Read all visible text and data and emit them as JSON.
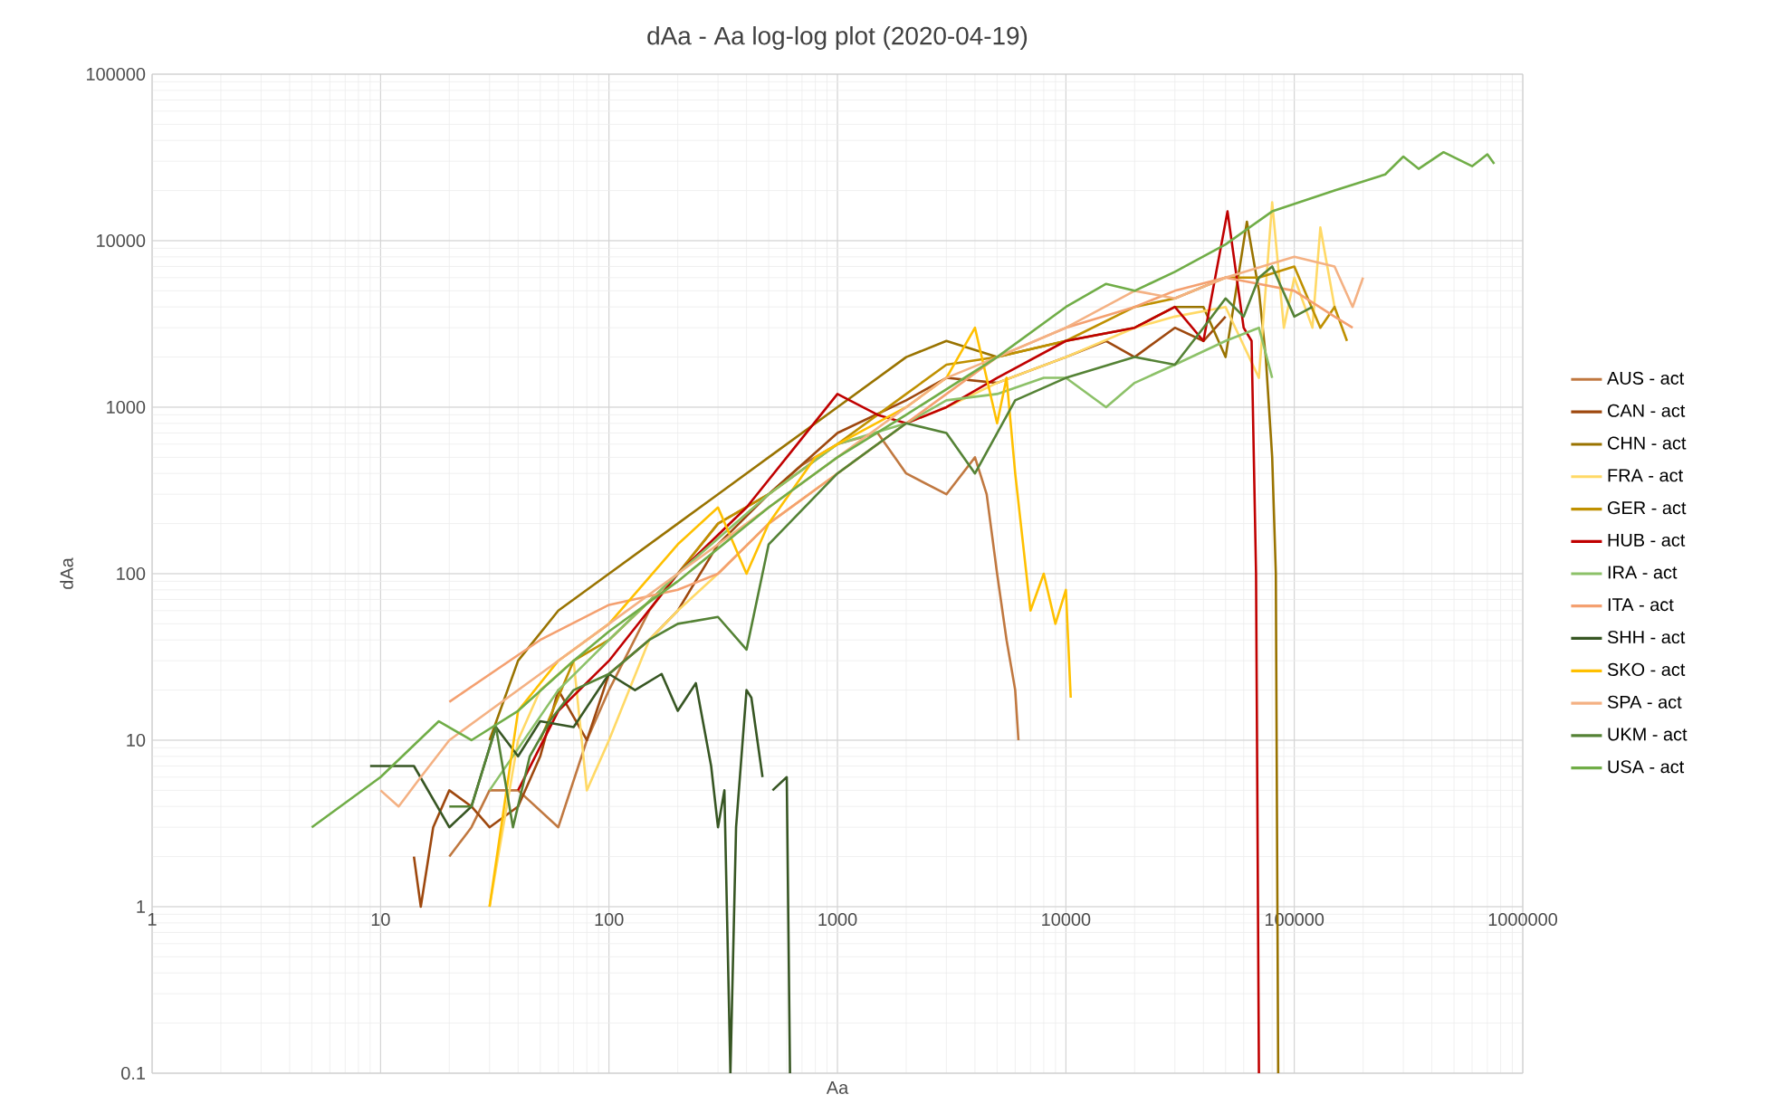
{
  "chart_data": {
    "type": "line",
    "title": "dAa - Aa log-log plot (2020-04-19)",
    "xlabel": "Aa",
    "ylabel": "dAa",
    "log": "xy",
    "grid": true,
    "legend": "right",
    "marker": "none",
    "line_style": "solid",
    "xlim": [
      1,
      1000000
    ],
    "ylim": [
      0.1,
      100000
    ],
    "xticks": [
      1,
      10,
      100,
      1000,
      10000,
      100000,
      1000000
    ],
    "yticks": [
      0.1,
      1,
      10,
      100,
      1000,
      10000,
      100000
    ],
    "series": [
      {
        "name": "AUS - act",
        "color": "#c07840",
        "x": [
          20,
          25,
          30,
          40,
          60,
          80,
          100,
          150,
          200,
          300,
          500,
          700,
          1000,
          1500,
          2000,
          3000,
          4000,
          4500,
          5000,
          5500,
          6000,
          6200
        ],
        "values": [
          2,
          3,
          5,
          5,
          3,
          10,
          20,
          60,
          100,
          200,
          300,
          450,
          600,
          700,
          400,
          300,
          500,
          300,
          100,
          40,
          20,
          10
        ]
      },
      {
        "name": "CAN - act",
        "color": "#9e480e",
        "x": [
          14,
          15,
          17,
          20,
          25,
          30,
          40,
          50,
          60,
          80,
          100,
          150,
          200,
          300,
          500,
          1000,
          2000,
          3000,
          5000,
          10000,
          15000,
          20000,
          30000,
          40000,
          50000
        ],
        "values": [
          2,
          1,
          3,
          5,
          4,
          3,
          4,
          8,
          20,
          10,
          25,
          40,
          60,
          150,
          300,
          700,
          1100,
          1500,
          1400,
          2000,
          2500,
          2000,
          3000,
          2500,
          3500
        ]
      },
      {
        "name": "CHN - act",
        "color": "#997300",
        "x": [
          30,
          40,
          60,
          100,
          200,
          300,
          500,
          1000,
          2000,
          3000,
          5000,
          10000,
          20000,
          30000,
          40000,
          50000,
          62000,
          70000,
          75000,
          80000,
          83000,
          85000
        ],
        "values": [
          10,
          30,
          60,
          100,
          200,
          300,
          500,
          1000,
          2000,
          2500,
          2000,
          2500,
          3000,
          4000,
          4000,
          2000,
          13000,
          5000,
          2000,
          500,
          100,
          0.1
        ]
      },
      {
        "name": "FRA - act",
        "color": "#ffd966",
        "x": [
          30,
          40,
          50,
          70,
          80,
          100,
          150,
          200,
          300,
          500,
          1000,
          2000,
          3000,
          5000,
          10000,
          20000,
          30000,
          50000,
          70000,
          80000,
          90000,
          100000,
          120000,
          130000,
          150000
        ],
        "values": [
          1,
          10,
          20,
          30,
          5,
          10,
          40,
          60,
          100,
          200,
          400,
          800,
          1000,
          1400,
          2000,
          3000,
          3500,
          4000,
          1500,
          17000,
          3000,
          6000,
          3000,
          12000,
          4000
        ]
      },
      {
        "name": "GER - act",
        "color": "#bf9000",
        "x": [
          50,
          70,
          100,
          200,
          300,
          500,
          1000,
          2000,
          3000,
          5000,
          10000,
          20000,
          30000,
          50000,
          70000,
          100000,
          130000,
          150000,
          170000
        ],
        "values": [
          10,
          30,
          40,
          100,
          200,
          300,
          600,
          1200,
          1800,
          2000,
          2500,
          4000,
          4500,
          6000,
          6000,
          7000,
          3000,
          4000,
          2500
        ]
      },
      {
        "name": "HUB - act",
        "color": "#c00000",
        "x": [
          40,
          60,
          100,
          200,
          400,
          600,
          1000,
          1500,
          2000,
          3000,
          5000,
          10000,
          20000,
          30000,
          40000,
          51000,
          60000,
          65000,
          68000,
          70000
        ],
        "values": [
          5,
          15,
          30,
          100,
          250,
          500,
          1200,
          900,
          800,
          1000,
          1500,
          2500,
          3000,
          4000,
          2500,
          15000,
          3000,
          2500,
          100,
          0.1
        ]
      },
      {
        "name": "IRA - act",
        "color": "#8cc168",
        "x": [
          30,
          60,
          100,
          200,
          500,
          1000,
          2000,
          3000,
          5000,
          8000,
          10000,
          15000,
          20000,
          30000,
          50000,
          70000,
          80000
        ],
        "values": [
          5,
          20,
          40,
          100,
          300,
          600,
          800,
          1100,
          1200,
          1500,
          1500,
          1000,
          1400,
          1800,
          2500,
          3000,
          1500
        ]
      },
      {
        "name": "ITA - act",
        "color": "#f4a070",
        "x": [
          20,
          50,
          100,
          200,
          300,
          500,
          1000,
          2000,
          3000,
          5000,
          10000,
          20000,
          30000,
          50000,
          70000,
          100000,
          150000,
          180000
        ],
        "values": [
          17,
          40,
          65,
          80,
          100,
          200,
          400,
          800,
          1200,
          2000,
          3000,
          4000,
          5000,
          6000,
          5500,
          5000,
          3500,
          3000
        ]
      },
      {
        "name": "SHH - act",
        "color": "#375623",
        "x": [
          9,
          14,
          20,
          25,
          32,
          40,
          50,
          70,
          100,
          130,
          170,
          200,
          240,
          280,
          300,
          320,
          340,
          360,
          400,
          420,
          470,
          500,
          520,
          600,
          620
        ],
        "values": [
          7,
          7,
          3,
          4,
          12,
          8,
          13,
          12,
          25,
          20,
          25,
          15,
          22,
          7,
          3,
          5,
          0.1,
          3,
          20,
          18,
          6,
          null,
          5,
          6,
          0.1
        ]
      },
      {
        "name": "SKO - act",
        "color": "#ffc000",
        "x": [
          30,
          40,
          60,
          100,
          200,
          300,
          400,
          500,
          800,
          1000,
          2000,
          3000,
          4000,
          5000,
          5500,
          6000,
          7000,
          8000,
          9000,
          10000,
          10500
        ],
        "values": [
          1,
          15,
          30,
          50,
          150,
          250,
          100,
          200,
          500,
          600,
          1000,
          1500,
          3000,
          800,
          1500,
          400,
          60,
          100,
          50,
          80,
          18
        ]
      },
      {
        "name": "SPA - act",
        "color": "#f4b183",
        "x": [
          10,
          12,
          15,
          20,
          30,
          50,
          100,
          200,
          400,
          600,
          1000,
          2000,
          3000,
          5000,
          10000,
          20000,
          30000,
          50000,
          100000,
          150000,
          180000,
          200000
        ],
        "values": [
          5,
          4,
          6,
          10,
          15,
          25,
          50,
          100,
          200,
          300,
          500,
          1000,
          1500,
          2000,
          3000,
          5000,
          4500,
          6000,
          8000,
          7000,
          4000,
          6000
        ]
      },
      {
        "name": "UKM - act",
        "color": "#548235",
        "x": [
          20,
          25,
          32,
          38,
          45,
          55,
          70,
          100,
          150,
          200,
          300,
          400,
          500,
          1000,
          2000,
          3000,
          4000,
          6000,
          10000,
          20000,
          30000,
          40000,
          50000,
          60000,
          70000,
          80000,
          100000,
          120000
        ],
        "values": [
          4,
          4,
          12,
          3,
          8,
          13,
          20,
          25,
          40,
          50,
          55,
          35,
          150,
          400,
          800,
          700,
          400,
          1100,
          1500,
          2000,
          1800,
          3000,
          4500,
          3500,
          6000,
          7000,
          3500,
          4000
        ]
      },
      {
        "name": "USA - act",
        "color": "#70ad47",
        "x": [
          5,
          10,
          18,
          25,
          40,
          70,
          100,
          200,
          500,
          1000,
          2000,
          5000,
          10000,
          15000,
          20000,
          30000,
          50000,
          80000,
          150000,
          250000,
          300000,
          350000,
          450000,
          600000,
          700000,
          750000
        ],
        "values": [
          3,
          6,
          13,
          10,
          15,
          30,
          45,
          90,
          250,
          500,
          900,
          2000,
          4000,
          5500,
          5000,
          6500,
          9500,
          15000,
          20000,
          25000,
          32000,
          27000,
          34000,
          28000,
          33000,
          29000
        ]
      }
    ]
  }
}
